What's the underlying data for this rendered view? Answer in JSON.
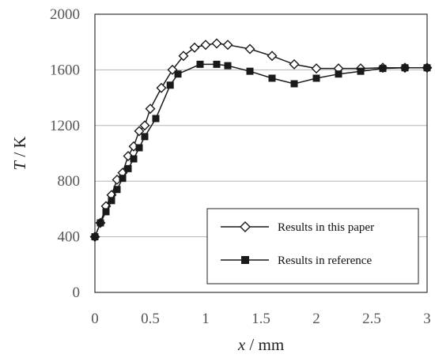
{
  "chart_data": {
    "type": "line",
    "xlabel_var": "x",
    "xlabel_unit": " / mm",
    "ylabel_var": "T",
    "ylabel_unit": " / K",
    "xlim": [
      0,
      3
    ],
    "ylim": [
      0,
      2000
    ],
    "xticks": [
      0,
      0.5,
      1,
      1.5,
      2,
      2.5,
      3
    ],
    "xtick_labels": [
      "0",
      "0.5",
      "1",
      "1.5",
      "2",
      "2.5",
      "3"
    ],
    "yticks": [
      0,
      400,
      800,
      1200,
      1600,
      2000
    ],
    "ytick_labels": [
      "0",
      "400",
      "800",
      "1200",
      "1600",
      "2000"
    ],
    "grid": "horizontal",
    "legend_position": "bottom-right",
    "series": [
      {
        "name": "Results in this paper",
        "marker": "open-diamond",
        "color": "#1a1a1a",
        "points": [
          [
            0,
            400
          ],
          [
            0.05,
            500
          ],
          [
            0.1,
            620
          ],
          [
            0.15,
            700
          ],
          [
            0.2,
            810
          ],
          [
            0.25,
            860
          ],
          [
            0.3,
            980
          ],
          [
            0.35,
            1050
          ],
          [
            0.4,
            1160
          ],
          [
            0.45,
            1200
          ],
          [
            0.5,
            1320
          ],
          [
            0.6,
            1470
          ],
          [
            0.7,
            1600
          ],
          [
            0.8,
            1700
          ],
          [
            0.9,
            1760
          ],
          [
            1.0,
            1780
          ],
          [
            1.1,
            1790
          ],
          [
            1.2,
            1780
          ],
          [
            1.4,
            1750
          ],
          [
            1.6,
            1700
          ],
          [
            1.8,
            1640
          ],
          [
            2.0,
            1610
          ],
          [
            2.2,
            1610
          ],
          [
            2.4,
            1610
          ],
          [
            2.6,
            1615
          ],
          [
            2.8,
            1615
          ],
          [
            3.0,
            1615
          ]
        ]
      },
      {
        "name": "Results in reference",
        "marker": "filled-square",
        "color": "#1a1a1a",
        "points": [
          [
            0,
            400
          ],
          [
            0.05,
            500
          ],
          [
            0.1,
            580
          ],
          [
            0.15,
            660
          ],
          [
            0.2,
            740
          ],
          [
            0.25,
            820
          ],
          [
            0.3,
            890
          ],
          [
            0.35,
            960
          ],
          [
            0.4,
            1040
          ],
          [
            0.45,
            1120
          ],
          [
            0.55,
            1250
          ],
          [
            0.68,
            1490
          ],
          [
            0.75,
            1570
          ],
          [
            0.95,
            1640
          ],
          [
            1.1,
            1640
          ],
          [
            1.2,
            1630
          ],
          [
            1.4,
            1590
          ],
          [
            1.6,
            1540
          ],
          [
            1.8,
            1500
          ],
          [
            2.0,
            1540
          ],
          [
            2.2,
            1570
          ],
          [
            2.4,
            1590
          ],
          [
            2.6,
            1610
          ],
          [
            2.8,
            1615
          ],
          [
            3.0,
            1615
          ]
        ]
      }
    ]
  }
}
